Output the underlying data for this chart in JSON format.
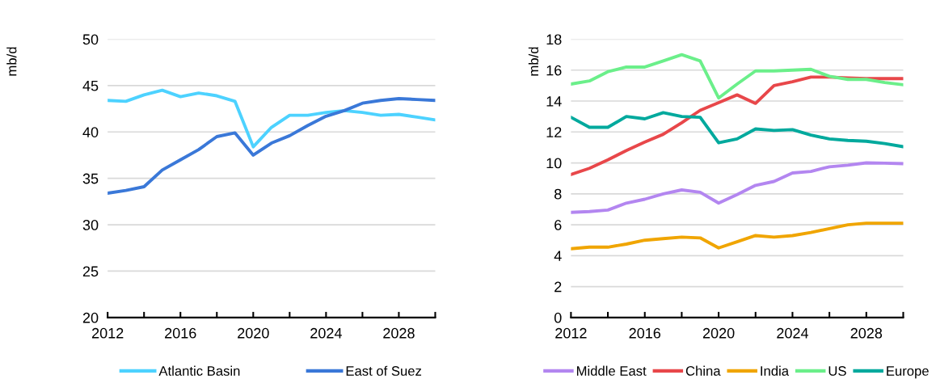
{
  "chart_data": [
    {
      "type": "line",
      "ylabel": "mb/d",
      "x": [
        2012,
        2013,
        2014,
        2015,
        2016,
        2017,
        2018,
        2019,
        2020,
        2021,
        2022,
        2023,
        2024,
        2025,
        2026,
        2027,
        2028,
        2029,
        2030
      ],
      "series": [
        {
          "name": "Atlantic Basin",
          "color": "#4dd2ff",
          "values": [
            43.4,
            43.3,
            44.0,
            44.5,
            43.8,
            44.2,
            43.9,
            43.3,
            38.4,
            40.5,
            41.8,
            41.8,
            42.1,
            42.3,
            42.1,
            41.8,
            41.9,
            41.6,
            41.3
          ]
        },
        {
          "name": "East of Suez",
          "color": "#3a78d8",
          "values": [
            33.4,
            33.7,
            34.1,
            35.9,
            37.0,
            38.1,
            39.5,
            39.9,
            37.5,
            38.8,
            39.6,
            40.7,
            41.7,
            42.3,
            43.1,
            43.4,
            43.6,
            43.5,
            43.4
          ]
        }
      ],
      "xlim": [
        2012,
        2030
      ],
      "xticks": [
        2012,
        {
          "value": 2014,
          "label": null
        },
        2016,
        {
          "value": 2018,
          "label": null
        },
        2020,
        {
          "value": 2022,
          "label": null
        },
        2024,
        {
          "value": 2026,
          "label": null
        },
        2028,
        {
          "value": 2030,
          "label": null
        }
      ],
      "ylim": [
        20,
        50
      ],
      "yticks": [
        20,
        25,
        30,
        35,
        40,
        45,
        50
      ],
      "grid": "y",
      "legend": "bottom",
      "line_style": "solid",
      "marker": "none"
    },
    {
      "type": "line",
      "ylabel": "mb/d",
      "x": [
        2012,
        2013,
        2014,
        2015,
        2016,
        2017,
        2018,
        2019,
        2020,
        2021,
        2022,
        2023,
        2024,
        2025,
        2026,
        2027,
        2028,
        2029,
        2030
      ],
      "series": [
        {
          "name": "Middle East",
          "color": "#b386f0",
          "values": [
            6.8,
            6.85,
            6.95,
            7.4,
            7.65,
            8.0,
            8.25,
            8.1,
            7.4,
            7.95,
            8.55,
            8.8,
            9.35,
            9.45,
            9.75,
            9.85,
            10.0,
            9.98,
            9.95
          ]
        },
        {
          "name": "China",
          "color": "#e8474a",
          "values": [
            9.25,
            9.65,
            10.2,
            10.8,
            11.35,
            11.85,
            12.6,
            13.4,
            13.9,
            14.4,
            13.85,
            15.0,
            15.25,
            15.55,
            15.55,
            15.5,
            15.45,
            15.45,
            15.45
          ]
        },
        {
          "name": "India",
          "color": "#f0a500",
          "values": [
            4.45,
            4.55,
            4.55,
            4.75,
            5.0,
            5.1,
            5.2,
            5.15,
            4.5,
            4.9,
            5.3,
            5.2,
            5.3,
            5.5,
            5.75,
            6.0,
            6.1,
            6.1,
            6.1
          ]
        },
        {
          "name": "US",
          "color": "#6bef8a",
          "values": [
            15.1,
            15.3,
            15.9,
            16.2,
            16.2,
            16.6,
            17.0,
            16.6,
            14.2,
            15.1,
            15.95,
            15.95,
            16.0,
            16.05,
            15.6,
            15.4,
            15.4,
            15.2,
            15.05
          ]
        },
        {
          "name": "Europe",
          "color": "#00a99d",
          "values": [
            12.95,
            12.3,
            12.3,
            13.0,
            12.85,
            13.25,
            13.0,
            12.95,
            11.3,
            11.55,
            12.2,
            12.1,
            12.15,
            11.8,
            11.55,
            11.45,
            11.4,
            11.25,
            11.05
          ]
        }
      ],
      "xlim": [
        2012,
        2030
      ],
      "xticks": [
        2012,
        {
          "value": 2014,
          "label": null
        },
        2016,
        {
          "value": 2018,
          "label": null
        },
        2020,
        {
          "value": 2022,
          "label": null
        },
        2024,
        {
          "value": 2026,
          "label": null
        },
        2028,
        {
          "value": 2030,
          "label": null
        }
      ],
      "ylim": [
        0,
        18
      ],
      "yticks": [
        0,
        2,
        4,
        6,
        8,
        10,
        12,
        14,
        16,
        18
      ],
      "grid": "y",
      "legend": "bottom",
      "line_style": "solid",
      "marker": "none"
    }
  ]
}
